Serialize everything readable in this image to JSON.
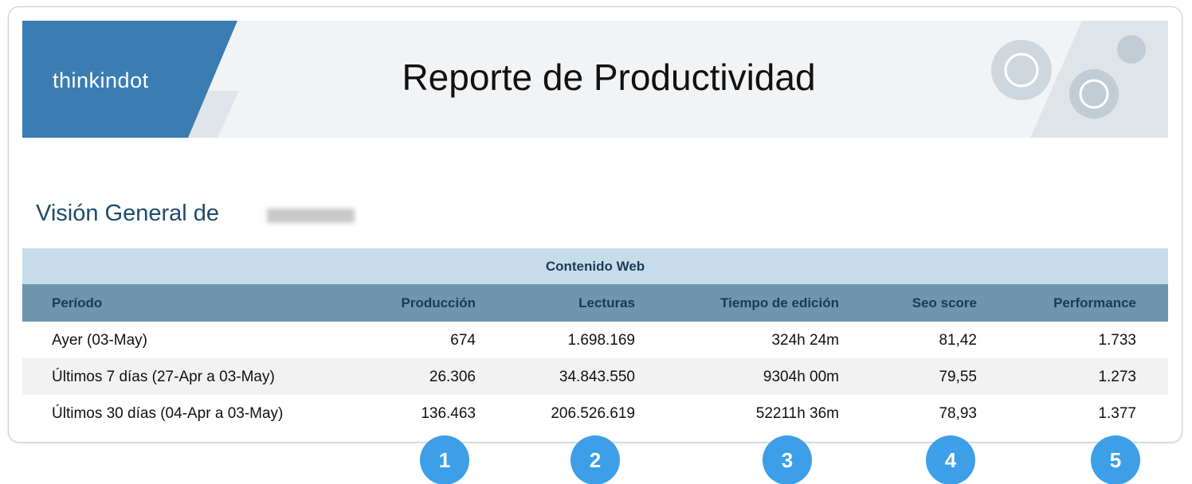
{
  "header": {
    "logo": "thinkindot",
    "title": "Reporte de Productividad"
  },
  "overview_title": "Visión General de",
  "table": {
    "group_header": "Contenido Web",
    "columns": [
      "Período",
      "Producción",
      "Lecturas",
      "Tiempo de edición",
      "Seo score",
      "Performance"
    ],
    "rows": [
      [
        "Ayer (03-May)",
        "674",
        "1.698.169",
        "324h 24m",
        "81,42",
        "1.733"
      ],
      [
        "Últimos 7 días (27-Apr a 03-May)",
        "26.306",
        "34.843.550",
        "9304h 00m",
        "79,55",
        "1.273"
      ],
      [
        "Últimos 30 días (04-Apr a 03-May)",
        "136.463",
        "206.526.619",
        "52211h 36m",
        "78,93",
        "1.377"
      ]
    ]
  },
  "badges": [
    "1",
    "2",
    "3",
    "4",
    "5"
  ]
}
